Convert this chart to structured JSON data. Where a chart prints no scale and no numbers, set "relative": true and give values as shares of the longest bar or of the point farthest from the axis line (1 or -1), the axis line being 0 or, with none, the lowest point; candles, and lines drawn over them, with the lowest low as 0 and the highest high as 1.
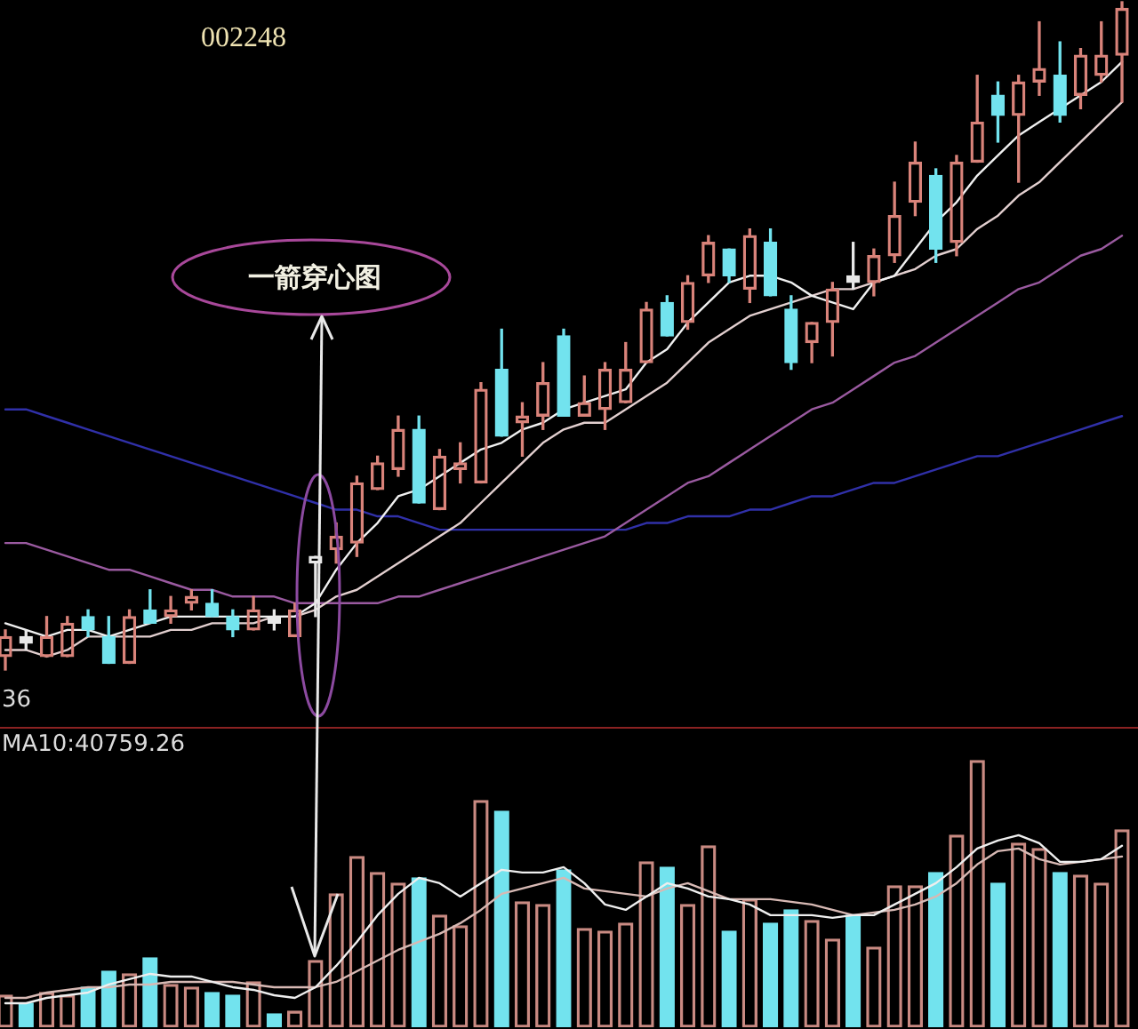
{
  "chart_data": [
    {
      "type": "candlestick",
      "title": "002248",
      "annotations": [
        "一箭穿心图",
        "36"
      ],
      "relative": true,
      "categories": [
        null,
        null,
        null,
        null,
        null,
        null,
        null,
        null,
        null,
        null,
        null,
        null,
        null,
        null,
        null,
        null,
        null,
        null,
        null,
        null,
        null,
        null,
        null,
        null,
        null,
        null,
        null,
        null,
        null,
        null,
        null,
        null,
        null,
        null,
        null,
        null,
        null,
        null,
        null,
        null,
        null,
        null,
        null,
        null,
        null,
        null,
        null,
        null,
        null,
        null,
        null,
        null,
        null,
        null,
        null
      ],
      "ohlc": [
        [
          0.02,
          0.06,
          0,
          0.05
        ],
        [
          0.05,
          0.06,
          0.03,
          0.04
        ],
        [
          0.02,
          0.08,
          0.02,
          0.05
        ],
        [
          0.02,
          0.08,
          0.02,
          0.07
        ],
        [
          0.08,
          0.09,
          0.05,
          0.06
        ],
        [
          0.05,
          0.08,
          0.01,
          0.01
        ],
        [
          0.01,
          0.09,
          0.01,
          0.08
        ],
        [
          0.09,
          0.12,
          0.07,
          0.07
        ],
        [
          0.08,
          0.11,
          0.07,
          0.09
        ],
        [
          0.1,
          0.12,
          0.09,
          0.11
        ],
        [
          0.1,
          0.12,
          0.08,
          0.08
        ],
        [
          0.08,
          0.09,
          0.05,
          0.06
        ],
        [
          0.06,
          0.11,
          0.06,
          0.09
        ],
        [
          0.08,
          0.09,
          0.06,
          0.07
        ],
        [
          0.05,
          0.1,
          0.05,
          0.09
        ],
        [
          0.16,
          0.17,
          0.08,
          0.17
        ],
        [
          0.18,
          0.22,
          0.16,
          0.2
        ],
        [
          0.19,
          0.29,
          0.17,
          0.28
        ],
        [
          0.27,
          0.32,
          0.27,
          0.31
        ],
        [
          0.3,
          0.38,
          0.29,
          0.36
        ],
        [
          0.36,
          0.38,
          0.25,
          0.25
        ],
        [
          0.24,
          0.33,
          0.24,
          0.32
        ],
        [
          0.3,
          0.34,
          0.28,
          0.31
        ],
        [
          0.28,
          0.43,
          0.28,
          0.42
        ],
        [
          0.45,
          0.51,
          0.35,
          0.35
        ],
        [
          0.37,
          0.4,
          0.32,
          0.38
        ],
        [
          0.38,
          0.46,
          0.36,
          0.43
        ],
        [
          0.5,
          0.51,
          0.38,
          0.38
        ],
        [
          0.38,
          0.44,
          0.38,
          0.4
        ],
        [
          0.39,
          0.46,
          0.36,
          0.45
        ],
        [
          0.4,
          0.49,
          0.4,
          0.45
        ],
        [
          0.46,
          0.55,
          0.46,
          0.54
        ],
        [
          0.55,
          0.56,
          0.5,
          0.5
        ],
        [
          0.52,
          0.59,
          0.51,
          0.58
        ],
        [
          0.59,
          0.65,
          0.58,
          0.64
        ],
        [
          0.63,
          0.63,
          0.58,
          0.59
        ],
        [
          0.57,
          0.66,
          0.55,
          0.65
        ],
        [
          0.64,
          0.66,
          0.56,
          0.56
        ],
        [
          0.54,
          0.56,
          0.45,
          0.46
        ],
        [
          0.49,
          0.52,
          0.46,
          0.52
        ],
        [
          0.52,
          0.58,
          0.47,
          0.57
        ],
        [
          0.59,
          0.64,
          0.57,
          0.58
        ],
        [
          0.58,
          0.63,
          0.56,
          0.62
        ],
        [
          0.62,
          0.73,
          0.61,
          0.68
        ],
        [
          0.7,
          0.79,
          0.68,
          0.76
        ],
        [
          0.74,
          0.75,
          0.61,
          0.63
        ],
        [
          0.64,
          0.77,
          0.62,
          0.76
        ],
        [
          0.76,
          0.89,
          0.76,
          0.82
        ],
        [
          0.86,
          0.88,
          0.79,
          0.83
        ],
        [
          0.83,
          0.89,
          0.73,
          0.88
        ],
        [
          0.88,
          0.97,
          0.86,
          0.9
        ],
        [
          0.89,
          0.94,
          0.82,
          0.83
        ],
        [
          0.86,
          0.93,
          0.84,
          0.92
        ],
        [
          0.89,
          0.97,
          0.88,
          0.92
        ],
        [
          0.92,
          1,
          0.85,
          0.99
        ]
      ],
      "colors": [
        "#d9837a",
        "#e8e8e8",
        "#d9837a",
        "#d9837a",
        "#72e3ee",
        "#72e3ee",
        "#d9837a",
        "#72e3ee",
        "#d9837a",
        "#d9837a",
        "#72e3ee",
        "#72e3ee",
        "#d9837a",
        "#e8e8e8",
        "#d9837a",
        "#e8e8e8",
        "#d9837a",
        "#d9837a",
        "#d9837a",
        "#d9837a",
        "#72e3ee",
        "#d9837a",
        "#d9837a",
        "#d9837a",
        "#72e3ee",
        "#d9837a",
        "#d9837a",
        "#72e3ee",
        "#d9837a",
        "#d9837a",
        "#d9837a",
        "#d9837a",
        "#72e3ee",
        "#d9837a",
        "#d9837a",
        "#72e3ee",
        "#d9837a",
        "#72e3ee",
        "#72e3ee",
        "#d9837a",
        "#d9837a",
        "#e8e8e8",
        "#d9837a",
        "#d9837a",
        "#d9837a",
        "#72e3ee",
        "#d9837a",
        "#d9837a",
        "#72e3ee",
        "#d9837a",
        "#d9837a",
        "#72e3ee",
        "#d9837a",
        "#d9837a",
        "#d9837a"
      ],
      "series": [
        {
          "type": "line",
          "color": "#f0f0f0",
          "values": [
            0.07,
            0.06,
            0.05,
            0.06,
            0.06,
            0.05,
            0.06,
            0.07,
            0.08,
            0.08,
            0.08,
            0.08,
            0.08,
            0.08,
            0.08,
            0.1,
            0.15,
            0.19,
            0.22,
            0.26,
            0.27,
            0.29,
            0.31,
            0.33,
            0.34,
            0.36,
            0.37,
            0.39,
            0.4,
            0.41,
            0.42,
            0.46,
            0.48,
            0.52,
            0.55,
            0.58,
            0.59,
            0.59,
            0.58,
            0.56,
            0.55,
            0.54,
            0.58,
            0.59,
            0.63,
            0.67,
            0.7,
            0.74,
            0.77,
            0.8,
            0.82,
            0.84,
            0.86,
            0.88,
            0.91
          ]
        },
        {
          "type": "line",
          "color": "#e2cfcf",
          "values": [
            0.03,
            0.03,
            0.02,
            0.03,
            0.05,
            0.05,
            0.05,
            0.05,
            0.06,
            0.06,
            0.07,
            0.07,
            0.07,
            0.08,
            0.08,
            0.09,
            0.11,
            0.12,
            0.14,
            0.16,
            0.18,
            0.2,
            0.22,
            0.25,
            0.28,
            0.31,
            0.34,
            0.36,
            0.37,
            0.37,
            0.39,
            0.41,
            0.43,
            0.46,
            0.49,
            0.51,
            0.53,
            0.54,
            0.55,
            0.56,
            0.57,
            0.57,
            0.58,
            0.59,
            0.6,
            0.62,
            0.63,
            0.66,
            0.68,
            0.71,
            0.73,
            0.76,
            0.79,
            0.82,
            0.85
          ]
        },
        {
          "type": "line",
          "color": "#9a5aa0",
          "values": [
            0.19,
            0.19,
            0.18,
            0.17,
            0.16,
            0.15,
            0.15,
            0.14,
            0.13,
            0.12,
            0.12,
            0.11,
            0.11,
            0.11,
            0.1,
            0.1,
            0.1,
            0.1,
            0.1,
            0.11,
            0.11,
            0.12,
            0.13,
            0.14,
            0.15,
            0.16,
            0.17,
            0.18,
            0.19,
            0.2,
            0.22,
            0.24,
            0.26,
            0.28,
            0.29,
            0.31,
            0.33,
            0.35,
            0.37,
            0.39,
            0.4,
            0.42,
            0.44,
            0.46,
            0.47,
            0.49,
            0.51,
            0.53,
            0.55,
            0.57,
            0.58,
            0.6,
            0.62,
            0.63,
            0.65
          ]
        },
        {
          "type": "line",
          "color": "#3030a8",
          "values": [
            0.39,
            0.39,
            0.38,
            0.37,
            0.36,
            0.35,
            0.34,
            0.33,
            0.32,
            0.31,
            0.3,
            0.29,
            0.28,
            0.27,
            0.26,
            0.25,
            0.24,
            0.24,
            0.23,
            0.23,
            0.22,
            0.21,
            0.21,
            0.21,
            0.21,
            0.21,
            0.21,
            0.21,
            0.21,
            0.21,
            0.21,
            0.22,
            0.22,
            0.23,
            0.23,
            0.23,
            0.24,
            0.24,
            0.25,
            0.26,
            0.26,
            0.27,
            0.28,
            0.28,
            0.29,
            0.3,
            0.31,
            0.32,
            0.32,
            0.33,
            0.34,
            0.35,
            0.36,
            0.37,
            0.38
          ]
        }
      ]
    },
    {
      "type": "bar",
      "annotations": [
        "MA10:40759.26"
      ],
      "relative": true,
      "categories": [
        null,
        null,
        null,
        null,
        null,
        null,
        null,
        null,
        null,
        null,
        null,
        null,
        null,
        null,
        null,
        null,
        null,
        null,
        null,
        null,
        null,
        null,
        null,
        null,
        null,
        null,
        null,
        null,
        null,
        null,
        null,
        null,
        null,
        null,
        null,
        null,
        null,
        null,
        null,
        null,
        null,
        null,
        null,
        null,
        null,
        null,
        null,
        null,
        null,
        null,
        null,
        null,
        null,
        null,
        null
      ],
      "series": [
        {
          "colors": [
            "#c98a82",
            "#72e3ee",
            "#c98a82",
            "#c98a82",
            "#72e3ee",
            "#72e3ee",
            "#c98a82",
            "#72e3ee",
            "#c98a82",
            "#c98a82",
            "#72e3ee",
            "#72e3ee",
            "#c98a82",
            "#72e3ee",
            "#c98a82",
            "#c98a82",
            "#c98a82",
            "#c98a82",
            "#c98a82",
            "#c98a82",
            "#72e3ee",
            "#c98a82",
            "#c98a82",
            "#c98a82",
            "#72e3ee",
            "#c98a82",
            "#c98a82",
            "#72e3ee",
            "#c98a82",
            "#c98a82",
            "#c98a82",
            "#c98a82",
            "#72e3ee",
            "#c98a82",
            "#c98a82",
            "#72e3ee",
            "#c98a82",
            "#72e3ee",
            "#72e3ee",
            "#c98a82",
            "#c98a82",
            "#72e3ee",
            "#c98a82",
            "#c98a82",
            "#c98a82",
            "#72e3ee",
            "#c98a82",
            "#c98a82",
            "#72e3ee",
            "#c98a82",
            "#c98a82",
            "#72e3ee",
            "#c98a82",
            "#c98a82",
            "#c98a82"
          ],
          "values": [
            0.12,
            0.09,
            0.13,
            0.12,
            0.15,
            0.21,
            0.2,
            0.26,
            0.16,
            0.15,
            0.13,
            0.12,
            0.17,
            0.05,
            0.06,
            0.25,
            0.5,
            0.64,
            0.58,
            0.54,
            0.56,
            0.42,
            0.38,
            0.85,
            0.81,
            0.47,
            0.46,
            0.59,
            0.37,
            0.36,
            0.39,
            0.62,
            0.6,
            0.46,
            0.68,
            0.36,
            0.48,
            0.39,
            0.44,
            0.4,
            0.33,
            0.42,
            0.3,
            0.53,
            0.53,
            0.58,
            0.72,
            1,
            0.54,
            0.69,
            0.67,
            0.58,
            0.57,
            0.54,
            0.74
          ]
        },
        {
          "type": "line",
          "color": "#eeeeee",
          "values": [
            0.09,
            0.09,
            0.11,
            0.12,
            0.13,
            0.16,
            0.18,
            0.2,
            0.19,
            0.19,
            0.17,
            0.15,
            0.14,
            0.12,
            0.11,
            0.15,
            0.23,
            0.32,
            0.42,
            0.5,
            0.56,
            0.54,
            0.49,
            0.54,
            0.59,
            0.58,
            0.58,
            0.6,
            0.54,
            0.46,
            0.44,
            0.49,
            0.54,
            0.52,
            0.49,
            0.48,
            0.46,
            0.42,
            0.42,
            0.42,
            0.41,
            0.42,
            0.42,
            0.46,
            0.5,
            0.54,
            0.6,
            0.67,
            0.7,
            0.72,
            0.69,
            0.62,
            0.62,
            0.63,
            0.68
          ]
        },
        {
          "type": "line",
          "color": "#d7b9b4",
          "values": [
            0.11,
            0.11,
            0.13,
            0.14,
            0.15,
            0.15,
            0.16,
            0.16,
            0.17,
            0.17,
            0.17,
            0.17,
            0.16,
            0.15,
            0.15,
            0.15,
            0.17,
            0.21,
            0.25,
            0.29,
            0.32,
            0.35,
            0.39,
            0.44,
            0.5,
            0.52,
            0.54,
            0.56,
            0.52,
            0.51,
            0.5,
            0.49,
            0.52,
            0.54,
            0.51,
            0.48,
            0.48,
            0.48,
            0.47,
            0.46,
            0.44,
            0.42,
            0.43,
            0.44,
            0.46,
            0.49,
            0.54,
            0.61,
            0.66,
            0.67,
            0.63,
            0.61,
            0.62,
            0.63,
            0.64
          ]
        }
      ]
    }
  ]
}
